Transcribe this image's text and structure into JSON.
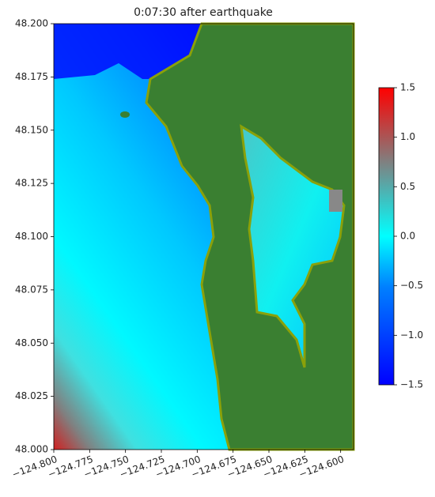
{
  "chart_data": {
    "type": "map",
    "title": "0:07:30 after earthquake",
    "xlim": [
      -124.8,
      -124.591
    ],
    "ylim": [
      48.0,
      48.2
    ],
    "xticks": [
      {
        "value": -124.8,
        "label": "−124.800"
      },
      {
        "value": -124.775,
        "label": "−124.775"
      },
      {
        "value": -124.75,
        "label": "−124.750"
      },
      {
        "value": -124.725,
        "label": "−124.725"
      },
      {
        "value": -124.7,
        "label": "−124.700"
      },
      {
        "value": -124.675,
        "label": "−124.675"
      },
      {
        "value": -124.65,
        "label": "−124.650"
      },
      {
        "value": -124.625,
        "label": "−124.625"
      },
      {
        "value": -124.6,
        "label": "−124.600"
      }
    ],
    "yticks": [
      {
        "value": 48.0,
        "label": "48.000"
      },
      {
        "value": 48.025,
        "label": "48.025"
      },
      {
        "value": 48.05,
        "label": "48.050"
      },
      {
        "value": 48.075,
        "label": "48.075"
      },
      {
        "value": 48.1,
        "label": "48.100"
      },
      {
        "value": 48.125,
        "label": "48.125"
      },
      {
        "value": 48.15,
        "label": "48.150"
      },
      {
        "value": 48.175,
        "label": "48.175"
      },
      {
        "value": 48.2,
        "label": "48.200"
      }
    ],
    "colorbar": {
      "lim": [
        -1.5,
        1.5
      ],
      "ticks": [
        {
          "value": -1.5,
          "label": "−1.5"
        },
        {
          "value": -1.0,
          "label": "−1.0"
        },
        {
          "value": -0.5,
          "label": "−0.5"
        },
        {
          "value": 0.0,
          "label": "0.0"
        },
        0.5,
        {
          "value": 1.0,
          "label": "1.0"
        },
        1.5
      ]
    }
  }
}
